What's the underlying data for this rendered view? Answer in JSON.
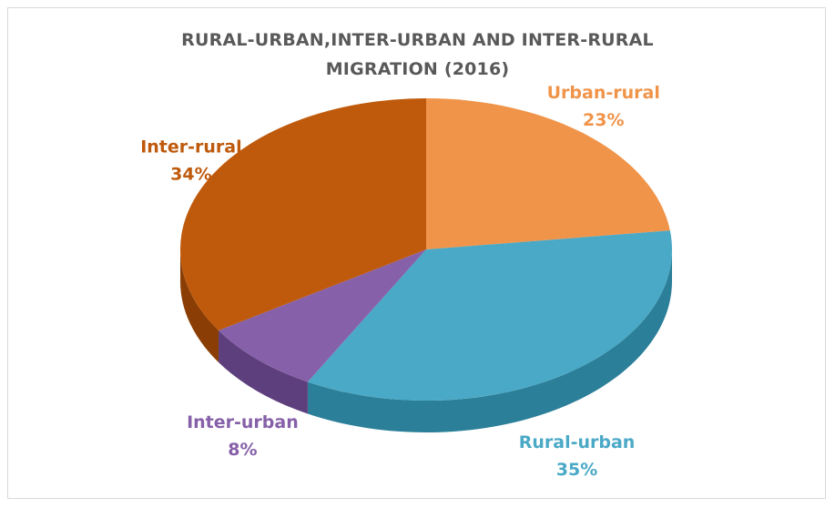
{
  "chart_data": {
    "type": "pie",
    "title_line1": "RURAL-URBAN,INTER-URBAN AND INTER-RURAL",
    "title_line2": "MIGRATION (2016)",
    "slices": [
      {
        "name": "Urban-rural",
        "value": 23,
        "label": "23%",
        "color": "#f0944a",
        "side": "#c06a24"
      },
      {
        "name": "Rural-urban",
        "value": 35,
        "label": "35%",
        "color": "#4aa9c6",
        "side": "#2b7f99"
      },
      {
        "name": "Inter-urban",
        "value": 8,
        "label": "8%",
        "color": "#8660a8",
        "side": "#5e3f7d"
      },
      {
        "name": "Inter-rural",
        "value": 34,
        "label": "34%",
        "color": "#bf5a0c",
        "side": "#8a3e05"
      }
    ],
    "legend": "none"
  }
}
